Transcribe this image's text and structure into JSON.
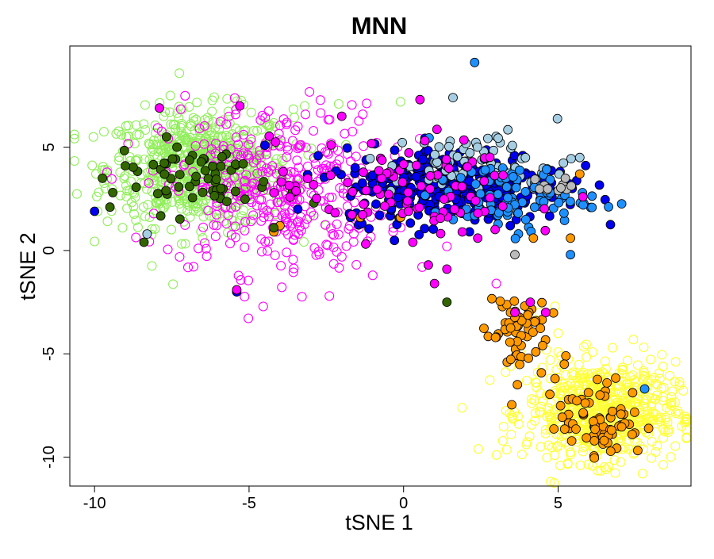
{
  "chart_data": {
    "type": "scatter",
    "title": "MNN",
    "xlabel": "tSNE 1",
    "ylabel": "tSNE 2",
    "xlim": [
      -10.8,
      9.3
    ],
    "ylim": [
      -11.4,
      9.9
    ],
    "xticks": [
      -10,
      -5,
      0,
      5
    ],
    "xtick_labels": [
      "-10",
      "-5",
      "0",
      "5"
    ],
    "yticks": [
      -10,
      -5,
      0,
      5
    ],
    "ytick_labels": [
      "-10",
      "-5",
      "0",
      "5"
    ],
    "grid": false,
    "legend": "none",
    "colors": {
      "light_green": "#90ee5a",
      "magenta": "#ff00ff",
      "yellow": "#ffff33",
      "blue": "#0000ee",
      "light_blue": "#a6cee3",
      "azure": "#1e90ff",
      "orange": "#ff9900",
      "dark_green": "#336600",
      "grey": "#bbbbbb"
    },
    "series": [
      {
        "color_key": "light_green",
        "style": "open",
        "cluster": {
          "cx": -6.6,
          "cy": 4.0,
          "sx": 1.5,
          "sy": 1.4,
          "n": 650
        },
        "points": [
          [
            -9.9,
            1.9
          ],
          [
            -5.4,
            -1.9
          ],
          [
            -0.1,
            7.2
          ],
          [
            -3.2,
            7.0
          ],
          [
            -2.1,
            7.1
          ]
        ]
      },
      {
        "color_key": "magenta",
        "style": "open",
        "cluster": {
          "cx": -4.2,
          "cy": 3.0,
          "sx": 1.8,
          "sy": 2.0,
          "n": 380
        },
        "points": [
          [
            -1.0,
            -1.2
          ],
          [
            0.6,
            -0.8
          ],
          [
            1.4,
            0.2
          ],
          [
            -2.4,
            -2.2
          ],
          [
            4.6,
            -3.0
          ],
          [
            3.0,
            -1.6
          ],
          [
            -3.4,
            0.8
          ],
          [
            -2.0,
            -0.3
          ]
        ]
      },
      {
        "color_key": "yellow",
        "style": "open",
        "cluster": {
          "cx": 6.4,
          "cy": -7.8,
          "sx": 1.2,
          "sy": 1.2,
          "n": 620
        },
        "points": [
          [
            4.4,
            -3.0
          ],
          [
            4.9,
            -2.7
          ],
          [
            5.0,
            -4.0
          ],
          [
            3.8,
            -5.0
          ]
        ]
      },
      {
        "color_key": "blue",
        "style": "filled",
        "cluster": {
          "cx": 1.6,
          "cy": 3.2,
          "sx": 1.8,
          "sy": 0.9,
          "n": 340
        },
        "points": [
          [
            -10.0,
            1.9
          ],
          [
            -5.4,
            -2.0
          ]
        ]
      },
      {
        "color_key": "light_blue",
        "style": "filled",
        "cluster": {
          "cx": 2.6,
          "cy": 4.2,
          "sx": 1.5,
          "sy": 0.8,
          "n": 70
        },
        "points": [
          [
            1.6,
            7.4
          ],
          [
            5.7,
            4.5
          ],
          [
            -8.3,
            0.8
          ]
        ]
      },
      {
        "color_key": "azure",
        "style": "filled",
        "cluster": {
          "cx": 3.4,
          "cy": 2.6,
          "sx": 1.3,
          "sy": 0.8,
          "n": 90
        },
        "points": [
          [
            2.3,
            9.1
          ],
          [
            5.4,
            -0.2
          ],
          [
            7.8,
            -6.7
          ]
        ]
      },
      {
        "color_key": "orange",
        "style": "filled",
        "cluster": {
          "cx": 3.6,
          "cy": -3.9,
          "sx": 0.5,
          "sy": 1.2,
          "n": 60
        },
        "points": [
          [
            5.7,
            3.7
          ],
          [
            5.4,
            0.6
          ],
          [
            4.2,
            0.6
          ],
          [
            -4.2,
            0.9
          ],
          [
            -4.0,
            1.2
          ],
          [
            -1.4,
            1.6
          ],
          [
            -0.1,
            1.6
          ]
        ]
      },
      {
        "color_key": "dark_green",
        "style": "filled",
        "cluster": {
          "cx": -6.8,
          "cy": 3.6,
          "sx": 1.3,
          "sy": 0.9,
          "n": 60
        },
        "points": [
          [
            -9.0,
            4.1
          ],
          [
            -8.4,
            0.4
          ],
          [
            -9.5,
            2.1
          ],
          [
            -3.6,
            2.8
          ],
          [
            -2.9,
            2.3
          ],
          [
            -4.2,
            1.1
          ],
          [
            1.4,
            -2.5
          ]
        ]
      },
      {
        "color_key": "magenta",
        "style": "filled",
        "cluster": {
          "cx": -0.2,
          "cy": 3.0,
          "sx": 2.0,
          "sy": 1.2,
          "n": 90
        },
        "points": [
          [
            -7.9,
            6.9
          ],
          [
            -5.3,
            7.0
          ],
          [
            -2.0,
            6.5
          ],
          [
            0.3,
            0.4
          ],
          [
            0.8,
            -0.7
          ],
          [
            1.4,
            -0.9
          ],
          [
            1.0,
            -1.6
          ],
          [
            1.9,
            0.9
          ],
          [
            2.4,
            0.6
          ],
          [
            4.1,
            -2.5
          ],
          [
            4.6,
            -3.0
          ],
          [
            3.6,
            -3.0
          ],
          [
            -5.4,
            -1.9
          ],
          [
            5.8,
            2.6
          ]
        ]
      },
      {
        "color_key": "orange",
        "style": "filled",
        "cluster": {
          "cx": 6.4,
          "cy": -8.2,
          "sx": 0.7,
          "sy": 0.9,
          "n": 70
        },
        "points": [
          [
            4.5,
            -4.6
          ],
          [
            5.2,
            -5.5
          ],
          [
            4.9,
            -6.2
          ]
        ]
      },
      {
        "color_key": "grey",
        "style": "filled",
        "cluster": {
          "cx": 4.8,
          "cy": 3.0,
          "sx": 0.4,
          "sy": 0.3,
          "n": 12
        },
        "points": [
          [
            3.6,
            -0.2
          ]
        ]
      }
    ]
  }
}
